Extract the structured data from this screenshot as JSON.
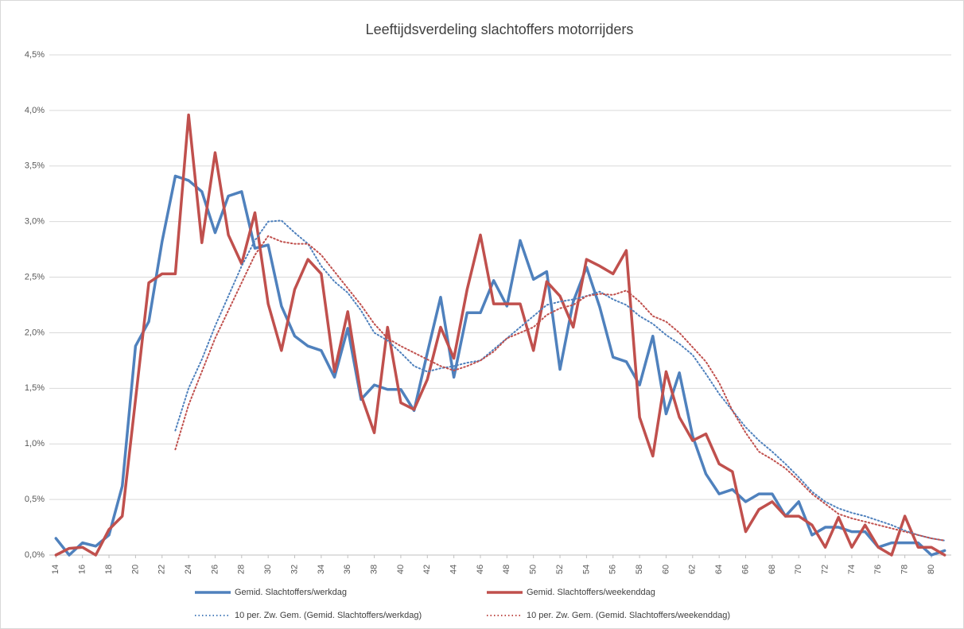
{
  "chart_data": {
    "type": "line",
    "title": "Leeftijdsverdeling slachtoffers motorrijders",
    "x": [
      14,
      15,
      16,
      17,
      18,
      19,
      20,
      21,
      22,
      23,
      24,
      25,
      26,
      27,
      28,
      29,
      30,
      31,
      32,
      33,
      34,
      35,
      36,
      37,
      38,
      39,
      40,
      41,
      42,
      43,
      44,
      45,
      46,
      47,
      48,
      49,
      50,
      51,
      52,
      53,
      54,
      55,
      56,
      57,
      58,
      59,
      60,
      61,
      62,
      63,
      64,
      65,
      66,
      67,
      68,
      69,
      70,
      71,
      72,
      73,
      74,
      75,
      76,
      77,
      78,
      79,
      80,
      81
    ],
    "xlim": [
      13.5,
      81.5
    ],
    "xticks": [
      14,
      16,
      18,
      20,
      22,
      24,
      26,
      28,
      30,
      32,
      34,
      36,
      38,
      40,
      42,
      44,
      46,
      48,
      50,
      52,
      54,
      56,
      58,
      60,
      62,
      64,
      66,
      68,
      70,
      72,
      74,
      76,
      78,
      80
    ],
    "ylim": [
      0,
      4.5
    ],
    "yticks": [
      {
        "value": 0,
        "label": "0,0%"
      },
      {
        "value": 0.5,
        "label": "0,5%"
      },
      {
        "value": 1,
        "label": "1,0%"
      },
      {
        "value": 1.5,
        "label": "1,5%"
      },
      {
        "value": 2,
        "label": "2,0%"
      },
      {
        "value": 2.5,
        "label": "2,5%"
      },
      {
        "value": 3,
        "label": "3,0%"
      },
      {
        "value": 3.5,
        "label": "3,5%"
      },
      {
        "value": 4,
        "label": "4,0%"
      },
      {
        "value": 4.5,
        "label": "4,5%"
      }
    ],
    "grid": true,
    "legend": "bottom",
    "series": [
      {
        "name": "Gemid. Slachtoffers/werkdag",
        "color": "#4f81bd",
        "style": "solid",
        "values": [
          0.15,
          0.0,
          0.11,
          0.08,
          0.18,
          0.62,
          1.88,
          2.1,
          2.82,
          3.41,
          3.37,
          3.27,
          2.9,
          3.23,
          3.27,
          2.76,
          2.79,
          2.24,
          1.97,
          1.88,
          1.84,
          1.6,
          2.04,
          1.4,
          1.53,
          1.49,
          1.49,
          1.3,
          1.82,
          2.32,
          1.6,
          2.18,
          2.18,
          2.47,
          2.24,
          2.83,
          2.48,
          2.55,
          1.67,
          2.28,
          2.59,
          2.23,
          1.78,
          1.74,
          1.53,
          1.97,
          1.27,
          1.64,
          1.07,
          0.73,
          0.55,
          0.59,
          0.48,
          0.55,
          0.55,
          0.35,
          0.48,
          0.18,
          0.25,
          0.25,
          0.21,
          0.21,
          0.07,
          0.11,
          0.11,
          0.11,
          0.0,
          0.04
        ]
      },
      {
        "name": "Gemid. Slachtoffers/weekenddag",
        "color": "#c0504d",
        "style": "solid",
        "values": [
          0.0,
          0.06,
          0.07,
          0.0,
          0.23,
          0.35,
          1.4,
          2.45,
          2.53,
          2.53,
          3.96,
          2.81,
          3.62,
          2.88,
          2.62,
          3.08,
          2.26,
          1.84,
          2.39,
          2.66,
          2.53,
          1.65,
          2.19,
          1.44,
          1.1,
          2.05,
          1.37,
          1.31,
          1.58,
          2.05,
          1.77,
          2.39,
          2.88,
          2.26,
          2.26,
          2.26,
          1.84,
          2.46,
          2.33,
          2.05,
          2.66,
          2.6,
          2.53,
          2.74,
          1.24,
          0.89,
          1.65,
          1.24,
          1.03,
          1.09,
          0.82,
          0.75,
          0.21,
          0.41,
          0.48,
          0.35,
          0.35,
          0.27,
          0.07,
          0.34,
          0.07,
          0.27,
          0.07,
          0.0,
          0.35,
          0.07,
          0.07,
          0.0
        ]
      },
      {
        "name": "10 per. Zw. Gem. (Gemid. Slachtoffers/werkdag)",
        "color": "#4f81bd",
        "style": "dotted",
        "values": [
          null,
          null,
          null,
          null,
          null,
          null,
          null,
          null,
          null,
          1.12,
          1.5,
          1.76,
          2.06,
          2.33,
          2.6,
          2.83,
          3.0,
          3.01,
          2.9,
          2.8,
          2.6,
          2.46,
          2.36,
          2.2,
          2.0,
          1.93,
          1.82,
          1.7,
          1.65,
          1.68,
          1.7,
          1.73,
          1.75,
          1.85,
          1.95,
          2.05,
          2.15,
          2.25,
          2.28,
          2.3,
          2.33,
          2.37,
          2.3,
          2.25,
          2.15,
          2.08,
          1.98,
          1.9,
          1.8,
          1.63,
          1.45,
          1.3,
          1.15,
          1.03,
          0.93,
          0.82,
          0.7,
          0.57,
          0.48,
          0.42,
          0.38,
          0.35,
          0.31,
          0.27,
          0.22,
          0.18,
          0.15,
          0.13
        ]
      },
      {
        "name": "10 per. Zw. Gem. (Gemid. Slachtoffers/weekenddag)",
        "color": "#c0504d",
        "style": "dotted",
        "values": [
          null,
          null,
          null,
          null,
          null,
          null,
          null,
          null,
          null,
          0.95,
          1.35,
          1.65,
          1.95,
          2.2,
          2.45,
          2.7,
          2.87,
          2.82,
          2.8,
          2.8,
          2.7,
          2.55,
          2.4,
          2.25,
          2.08,
          1.95,
          1.88,
          1.82,
          1.76,
          1.7,
          1.66,
          1.7,
          1.75,
          1.83,
          1.95,
          2.0,
          2.05,
          2.16,
          2.22,
          2.25,
          2.33,
          2.35,
          2.34,
          2.38,
          2.28,
          2.15,
          2.1,
          2.0,
          1.87,
          1.74,
          1.55,
          1.3,
          1.1,
          0.93,
          0.86,
          0.78,
          0.67,
          0.55,
          0.46,
          0.37,
          0.33,
          0.3,
          0.27,
          0.24,
          0.21,
          0.18,
          0.15,
          0.13
        ]
      }
    ]
  }
}
